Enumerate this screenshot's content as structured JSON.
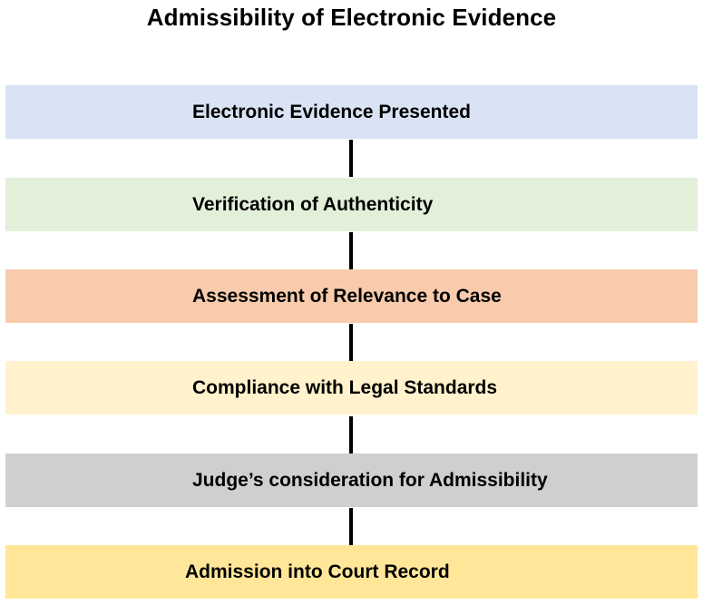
{
  "title": "Admissibility of Electronic Evidence",
  "steps": [
    {
      "label": "Electronic Evidence Presented",
      "color": "#dae3f3"
    },
    {
      "label": "Verification of Authenticity",
      "color": "#e2f0d9"
    },
    {
      "label": "Assessment of Relevance to Case",
      "color": "#f8cbad"
    },
    {
      "label": "Compliance with Legal Standards",
      "color": "#fff2cc"
    },
    {
      "label": "Judge’s consideration for Admissibility",
      "color": "#d0cece"
    },
    {
      "label": "Admission into Court Record",
      "color": "#ffe699"
    }
  ]
}
